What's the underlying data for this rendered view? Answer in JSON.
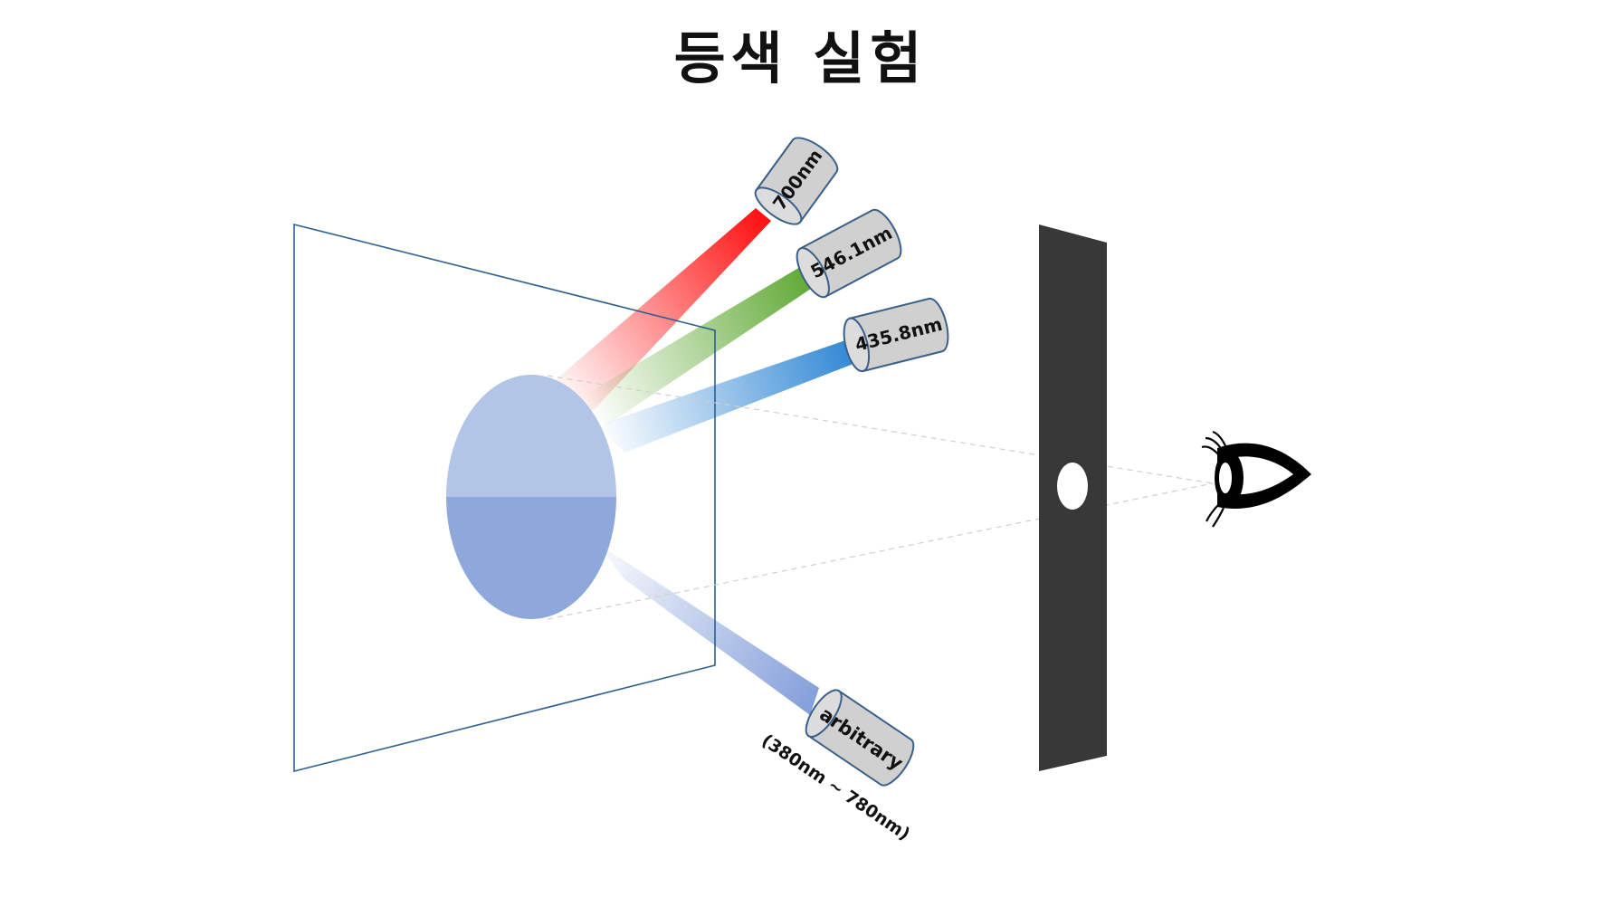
{
  "title": "등색 실험",
  "lamps": [
    {
      "name": "red",
      "label": "700nm",
      "color": "#ff1a1a"
    },
    {
      "name": "green",
      "label": "546.1nm",
      "color": "#6db33f"
    },
    {
      "name": "blue",
      "label": "435.8nm",
      "color": "#3d8ad6"
    },
    {
      "name": "arbitrary",
      "label": "arbitrary",
      "color": "#8fa8dc"
    }
  ],
  "arbitrary_range": "(380nm ~ 780nm)",
  "colors": {
    "frame": "#2e5f8f",
    "field_top": "#b3c5e6",
    "field_bottom": "#8fa8dc",
    "lamp_fill": "#d0d0d0",
    "lamp_stroke": "#3a5f88",
    "blocker": "#383838"
  }
}
